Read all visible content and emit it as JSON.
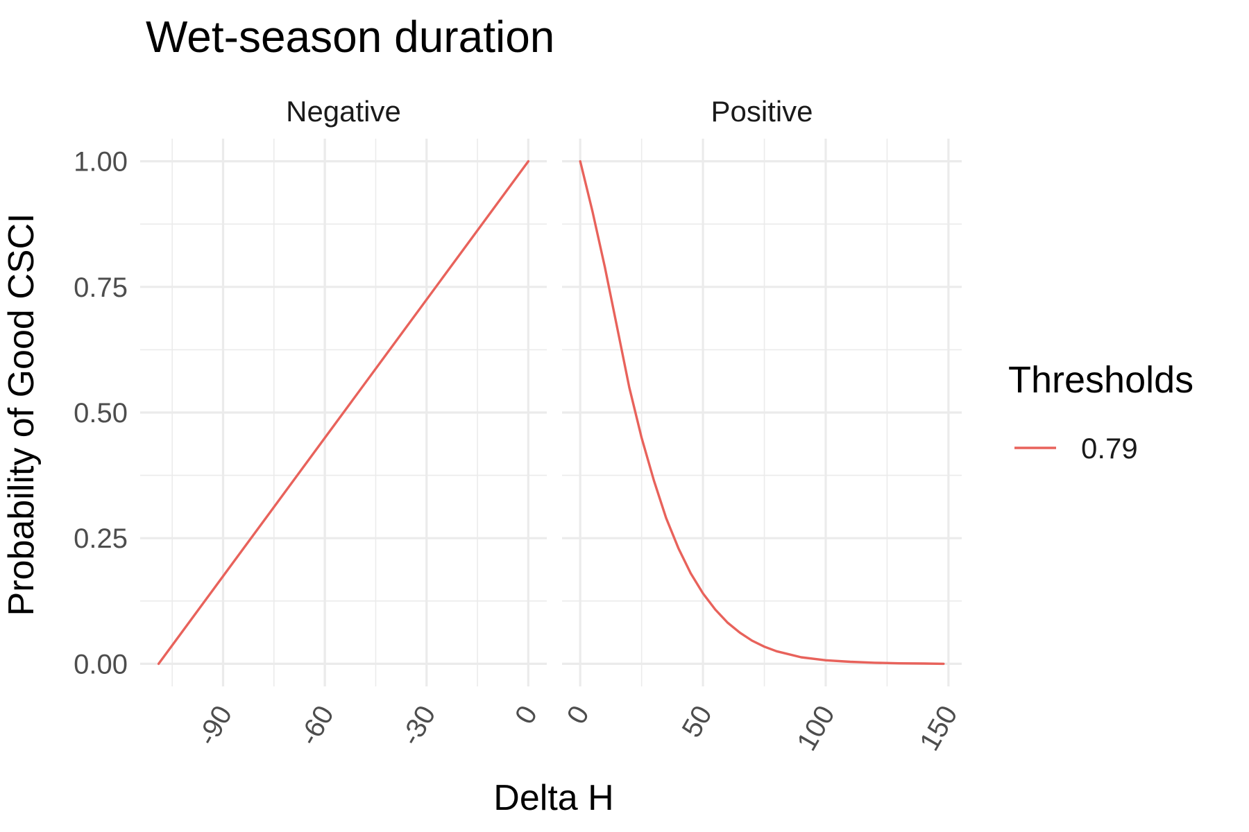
{
  "chart_data": {
    "type": "line",
    "title": "Wet-season duration",
    "xlabel": "Delta H",
    "ylabel": "Probability of Good CSCI",
    "legend": {
      "title": "Thresholds",
      "position": "right",
      "entries": [
        "0.79"
      ]
    },
    "colors": {
      "series": "#E8625B",
      "grid": "#EBEBEB",
      "tick_text": "#4D4D4D"
    },
    "grid": true,
    "y_ticks": [
      "0.00",
      "0.25",
      "0.50",
      "0.75",
      "1.00"
    ],
    "ylim": [
      0,
      1
    ],
    "panels": [
      {
        "name": "Negative",
        "xlim": [
          -109,
          0
        ],
        "x_ticks": [
          "-90",
          "-60",
          "-30",
          "0"
        ],
        "x_tick_values": [
          -90,
          -60,
          -30,
          0
        ],
        "series": [
          {
            "name": "0.79",
            "x": [
              -109,
              0
            ],
            "y": [
              0.0,
              1.0
            ]
          }
        ]
      },
      {
        "name": "Positive",
        "xlim": [
          0,
          148
        ],
        "x_ticks": [
          "0",
          "50",
          "100",
          "150"
        ],
        "x_tick_values": [
          0,
          50,
          100,
          150
        ],
        "series": [
          {
            "name": "0.79",
            "x": [
              0,
              5,
              10,
              15,
              20,
              25,
              30,
              35,
              40,
              45,
              50,
              55,
              60,
              65,
              70,
              75,
              80,
              90,
              100,
              110,
              120,
              130,
              140,
              148
            ],
            "y": [
              1.0,
              0.9,
              0.79,
              0.67,
              0.55,
              0.45,
              0.365,
              0.29,
              0.23,
              0.18,
              0.14,
              0.108,
              0.082,
              0.062,
              0.046,
              0.034,
              0.025,
              0.013,
              0.007,
              0.004,
              0.002,
              0.001,
              0.0005,
              0.0
            ]
          }
        ]
      }
    ]
  }
}
